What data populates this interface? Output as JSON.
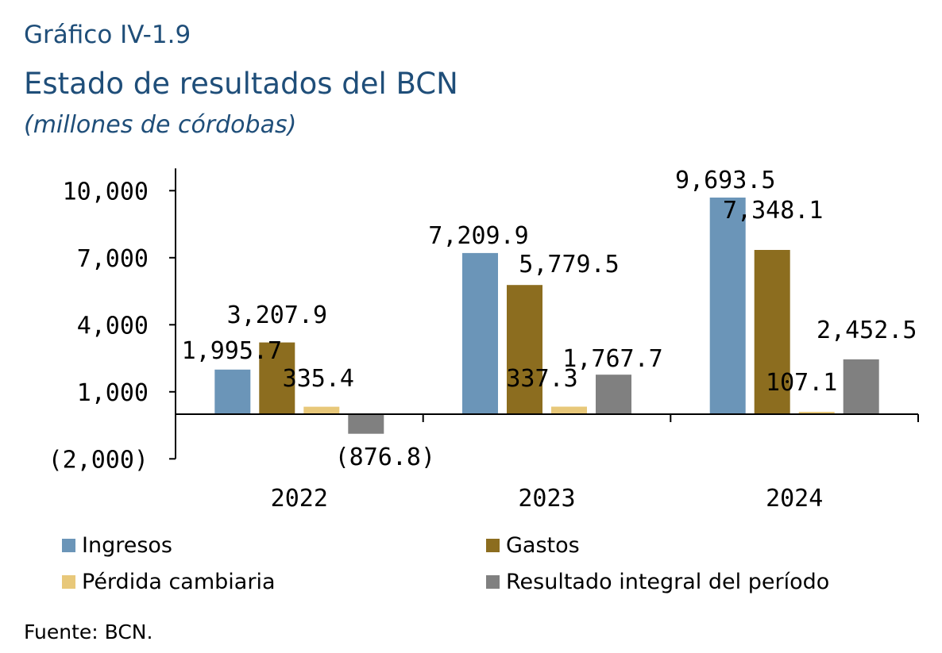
{
  "header": {
    "kicker": "Gráfico IV-1.9",
    "title": "Estado de resultados del BCN",
    "subtitle": "(millones de córdobas)"
  },
  "chart_data": {
    "type": "bar",
    "categories": [
      "2022",
      "2023",
      "2024"
    ],
    "series": [
      {
        "name": "Ingresos",
        "color": "#6b95b8",
        "values": [
          1995.7,
          7209.9,
          9693.5
        ],
        "labels": [
          "1,995.7",
          "7,209.9",
          "9,693.5"
        ]
      },
      {
        "name": "Gastos",
        "color": "#8c6d1f",
        "values": [
          3207.9,
          5779.5,
          7348.1
        ],
        "labels": [
          "3,207.9",
          "5,779.5",
          "7,348.1"
        ]
      },
      {
        "name": "Pérdida cambiaria",
        "color": "#e8c87a",
        "values": [
          335.4,
          337.3,
          107.1
        ],
        "labels": [
          "335.4",
          "337.3",
          "107.1"
        ]
      },
      {
        "name": "Resultado integral del período",
        "color": "#808080",
        "values": [
          -876.8,
          1767.7,
          2452.5
        ],
        "labels": [
          "(876.8)",
          "1,767.7",
          "2,452.5"
        ]
      }
    ],
    "yticks": [
      -2000,
      1000,
      4000,
      7000,
      10000
    ],
    "ytick_labels": [
      "(2,000)",
      "1,000",
      "4,000",
      "7,000",
      "10,000"
    ],
    "ylim": [
      -2000,
      11000
    ],
    "grid": false,
    "legend_position": "bottom"
  },
  "source": "Fuente: BCN."
}
